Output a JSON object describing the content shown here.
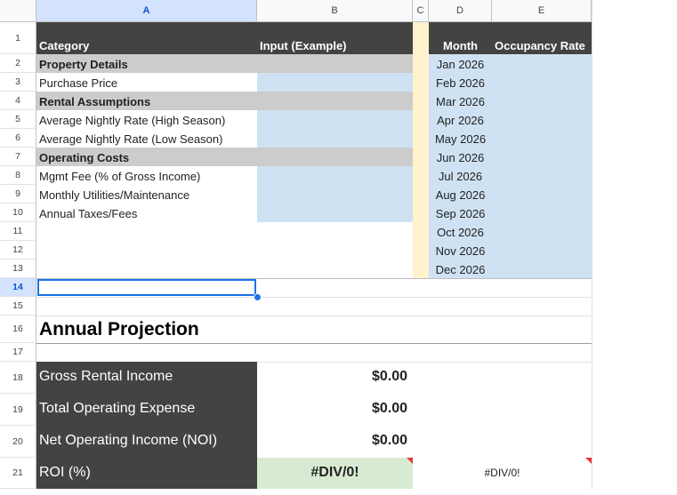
{
  "columns": [
    "A",
    "B",
    "C",
    "D",
    "E"
  ],
  "rows": [
    "1",
    "2",
    "3",
    "4",
    "5",
    "6",
    "7",
    "8",
    "9",
    "10",
    "11",
    "12",
    "13",
    "14",
    "15",
    "16",
    "17",
    "18",
    "19",
    "20",
    "21"
  ],
  "input_table": {
    "header": {
      "category": "Category",
      "input": "Input (Example)"
    },
    "rows": [
      {
        "label": "Property Details",
        "type": "section"
      },
      {
        "label": "Purchase Price",
        "type": "input"
      },
      {
        "label": "Rental Assumptions",
        "type": "section"
      },
      {
        "label": "Average Nightly Rate (High Season)",
        "type": "input"
      },
      {
        "label": "Average Nightly Rate (Low Season)",
        "type": "input"
      },
      {
        "label": "Operating Costs",
        "type": "section"
      },
      {
        "label": "Mgmt Fee (% of Gross Income)",
        "type": "input"
      },
      {
        "label": "Monthly Utilities/Maintenance",
        "type": "input"
      },
      {
        "label": "Annual Taxes/Fees",
        "type": "input"
      }
    ]
  },
  "occupancy_table": {
    "header": {
      "month": "Month",
      "rate": "Occupancy Rate"
    },
    "months": [
      "Jan 2026",
      "Feb 2026",
      "Mar 2026",
      "Apr 2026",
      "May 2026",
      "Jun 2026",
      "Jul 2026",
      "Aug 2026",
      "Sep 2026",
      "Oct 2026",
      "Nov 2026",
      "Dec 2026"
    ]
  },
  "projection": {
    "title": "Annual Projection",
    "rows": [
      {
        "label": "Gross Rental Income",
        "value": "$0.00"
      },
      {
        "label": "Total Operating Expense",
        "value": "$0.00"
      },
      {
        "label": "Net Operating Income (NOI)",
        "value": "$0.00"
      },
      {
        "label": "ROI (%)",
        "value": "#DIV/0!",
        "extra": "#DIV/0!"
      }
    ]
  },
  "colors": {
    "dark_header": "#434343",
    "section": "#cccccc",
    "input_blue": "#cfe2f3",
    "cream": "#fff2cc",
    "roi_green": "#d9ead3",
    "selection": "#1a73e8"
  }
}
